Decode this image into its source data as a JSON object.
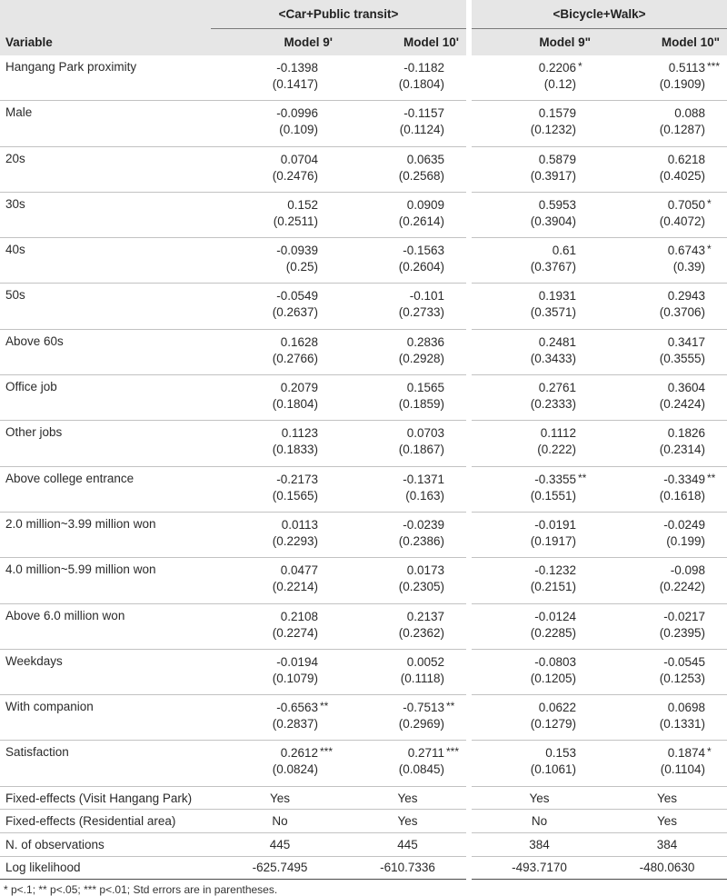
{
  "header": {
    "group_left": "<Car+Public transit>",
    "group_right": "<Bicycle+Walk>",
    "variable_label": "Variable",
    "models": [
      "Model 9'",
      "Model 10'",
      "Model 9\"",
      "Model 10\""
    ]
  },
  "rows": [
    {
      "name": "Hangang Park proximity",
      "cells": [
        {
          "v": "-0.1398",
          "s": "",
          "se": "(0.1417)"
        },
        {
          "v": "-0.1182",
          "s": "",
          "se": "(0.1804)"
        },
        {
          "v": "0.2206",
          "s": "*",
          "se": "(0.12)"
        },
        {
          "v": "0.5113",
          "s": "***",
          "se": "(0.1909)"
        }
      ]
    },
    {
      "name": "Male",
      "cells": [
        {
          "v": "-0.0996",
          "s": "",
          "se": "(0.109)"
        },
        {
          "v": "-0.1157",
          "s": "",
          "se": "(0.1124)"
        },
        {
          "v": "0.1579",
          "s": "",
          "se": "(0.1232)"
        },
        {
          "v": "0.088",
          "s": "",
          "se": "(0.1287)"
        }
      ]
    },
    {
      "name": "20s",
      "cells": [
        {
          "v": "0.0704",
          "s": "",
          "se": "(0.2476)"
        },
        {
          "v": "0.0635",
          "s": "",
          "se": "(0.2568)"
        },
        {
          "v": "0.5879",
          "s": "",
          "se": "(0.3917)"
        },
        {
          "v": "0.6218",
          "s": "",
          "se": "(0.4025)"
        }
      ]
    },
    {
      "name": "30s",
      "cells": [
        {
          "v": "0.152",
          "s": "",
          "se": "(0.2511)"
        },
        {
          "v": "0.0909",
          "s": "",
          "se": "(0.2614)"
        },
        {
          "v": "0.5953",
          "s": "",
          "se": "(0.3904)"
        },
        {
          "v": "0.7050",
          "s": "*",
          "se": "(0.4072)"
        }
      ]
    },
    {
      "name": "40s",
      "cells": [
        {
          "v": "-0.0939",
          "s": "",
          "se": "(0.25)"
        },
        {
          "v": "-0.1563",
          "s": "",
          "se": "(0.2604)"
        },
        {
          "v": "0.61",
          "s": "",
          "se": "(0.3767)"
        },
        {
          "v": "0.6743",
          "s": "*",
          "se": "(0.39)"
        }
      ]
    },
    {
      "name": "50s",
      "cells": [
        {
          "v": "-0.0549",
          "s": "",
          "se": "(0.2637)"
        },
        {
          "v": "-0.101",
          "s": "",
          "se": "(0.2733)"
        },
        {
          "v": "0.1931",
          "s": "",
          "se": "(0.3571)"
        },
        {
          "v": "0.2943",
          "s": "",
          "se": "(0.3706)"
        }
      ]
    },
    {
      "name": "Above 60s",
      "cells": [
        {
          "v": "0.1628",
          "s": "",
          "se": "(0.2766)"
        },
        {
          "v": "0.2836",
          "s": "",
          "se": "(0.2928)"
        },
        {
          "v": "0.2481",
          "s": "",
          "se": "(0.3433)"
        },
        {
          "v": "0.3417",
          "s": "",
          "se": "(0.3555)"
        }
      ]
    },
    {
      "name": "Office job",
      "cells": [
        {
          "v": "0.2079",
          "s": "",
          "se": "(0.1804)"
        },
        {
          "v": "0.1565",
          "s": "",
          "se": "(0.1859)"
        },
        {
          "v": "0.2761",
          "s": "",
          "se": "(0.2333)"
        },
        {
          "v": "0.3604",
          "s": "",
          "se": "(0.2424)"
        }
      ]
    },
    {
      "name": "Other jobs",
      "cells": [
        {
          "v": "0.1123",
          "s": "",
          "se": "(0.1833)"
        },
        {
          "v": "0.0703",
          "s": "",
          "se": "(0.1867)"
        },
        {
          "v": "0.1112",
          "s": "",
          "se": "(0.222)"
        },
        {
          "v": "0.1826",
          "s": "",
          "se": "(0.2314)"
        }
      ]
    },
    {
      "name": "Above college entrance",
      "cells": [
        {
          "v": "-0.2173",
          "s": "",
          "se": "(0.1565)"
        },
        {
          "v": "-0.1371",
          "s": "",
          "se": "(0.163)"
        },
        {
          "v": "-0.3355",
          "s": "**",
          "se": "(0.1551)"
        },
        {
          "v": "-0.3349",
          "s": "**",
          "se": "(0.1618)"
        }
      ]
    },
    {
      "name": "2.0 million~3.99 million won",
      "cells": [
        {
          "v": "0.0113",
          "s": "",
          "se": "(0.2293)"
        },
        {
          "v": "-0.0239",
          "s": "",
          "se": "(0.2386)"
        },
        {
          "v": "-0.0191",
          "s": "",
          "se": "(0.1917)"
        },
        {
          "v": "-0.0249",
          "s": "",
          "se": "(0.199)"
        }
      ]
    },
    {
      "name": "4.0 million~5.99 million won",
      "cells": [
        {
          "v": "0.0477",
          "s": "",
          "se": "(0.2214)"
        },
        {
          "v": "0.0173",
          "s": "",
          "se": "(0.2305)"
        },
        {
          "v": "-0.1232",
          "s": "",
          "se": "(0.2151)"
        },
        {
          "v": "-0.098",
          "s": "",
          "se": "(0.2242)"
        }
      ]
    },
    {
      "name": "Above 6.0 million won",
      "cells": [
        {
          "v": "0.2108",
          "s": "",
          "se": "(0.2274)"
        },
        {
          "v": "0.2137",
          "s": "",
          "se": "(0.2362)"
        },
        {
          "v": "-0.0124",
          "s": "",
          "se": "(0.2285)"
        },
        {
          "v": "-0.0217",
          "s": "",
          "se": "(0.2395)"
        }
      ]
    },
    {
      "name": "Weekdays",
      "cells": [
        {
          "v": "-0.0194",
          "s": "",
          "se": "(0.1079)"
        },
        {
          "v": "0.0052",
          "s": "",
          "se": "(0.1118)"
        },
        {
          "v": "-0.0803",
          "s": "",
          "se": "(0.1205)"
        },
        {
          "v": "-0.0545",
          "s": "",
          "se": "(0.1253)"
        }
      ]
    },
    {
      "name": "With companion",
      "cells": [
        {
          "v": "-0.6563",
          "s": "**",
          "se": "(0.2837)"
        },
        {
          "v": "-0.7513",
          "s": "**",
          "se": "(0.2969)"
        },
        {
          "v": "0.0622",
          "s": "",
          "se": "(0.1279)"
        },
        {
          "v": "0.0698",
          "s": "",
          "se": "(0.1331)"
        }
      ]
    },
    {
      "name": "Satisfaction",
      "cells": [
        {
          "v": "0.2612",
          "s": "***",
          "se": "(0.0824)"
        },
        {
          "v": "0.2711",
          "s": "***",
          "se": "(0.0845)"
        },
        {
          "v": "0.153",
          "s": "",
          "se": "(0.1061)"
        },
        {
          "v": "0.1874",
          "s": "*",
          "se": "(0.1104)"
        }
      ]
    }
  ],
  "footer_rows": [
    {
      "name": "Fixed-effects (Visit Hangang Park)",
      "values": [
        "Yes",
        "Yes",
        "Yes",
        "Yes"
      ]
    },
    {
      "name": "Fixed-effects (Residential area)",
      "values": [
        "No",
        "Yes",
        "No",
        "Yes"
      ]
    },
    {
      "name": "N. of observations",
      "values": [
        "445",
        "445",
        "384",
        "384"
      ]
    },
    {
      "name": "Log likelihood",
      "values": [
        "-625.7495",
        "-610.7336",
        "-493.7170",
        "-480.0630"
      ]
    }
  ],
  "note": "* p<.1; ** p<.05; *** p<.01; Std errors are in parentheses."
}
